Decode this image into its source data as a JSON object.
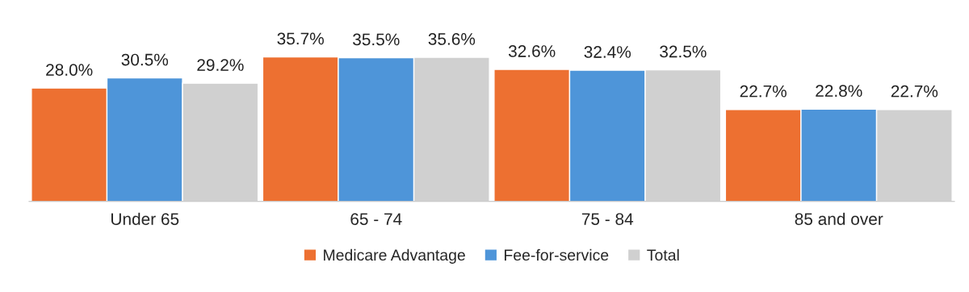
{
  "chart_data": {
    "type": "bar",
    "categories": [
      "Under 65",
      "65 - 74",
      "75 - 84",
      "85 and over"
    ],
    "series": [
      {
        "name": "Medicare Advantage",
        "color": "#ed7031",
        "values": [
          28.0,
          35.7,
          32.6,
          22.7
        ],
        "value_labels": [
          "28.0%",
          "35.7%",
          "32.6%",
          "22.7%"
        ]
      },
      {
        "name": "Fee-for-service",
        "color": "#4e95d9",
        "values": [
          30.5,
          35.5,
          32.4,
          22.8
        ],
        "value_labels": [
          "30.5%",
          "35.5%",
          "32.4%",
          "22.8%"
        ]
      },
      {
        "name": "Total",
        "color": "#d0d0d0",
        "values": [
          29.2,
          35.6,
          32.5,
          22.7
        ],
        "value_labels": [
          "29.2%",
          "35.6%",
          "32.5%",
          "22.7%"
        ]
      }
    ],
    "legend": "bottom",
    "grid": false
  }
}
